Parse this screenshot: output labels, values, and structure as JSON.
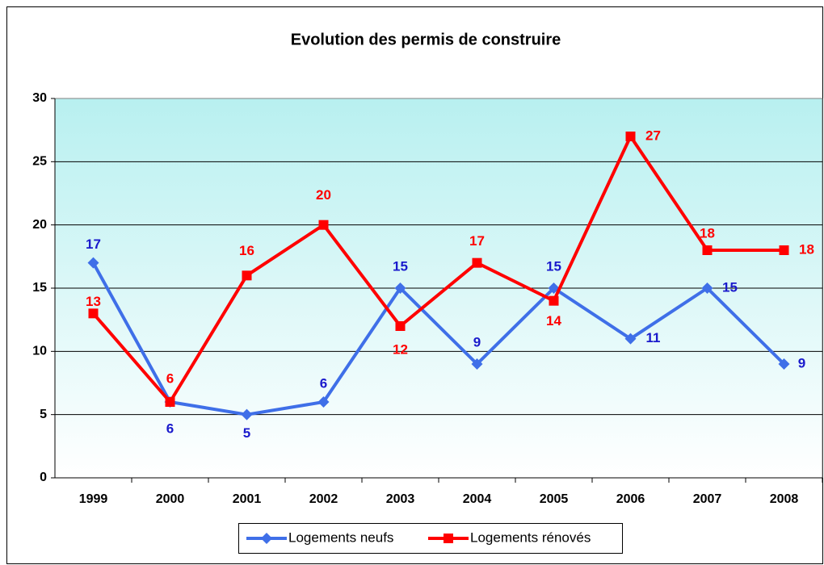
{
  "chart_data": {
    "type": "line",
    "title": "Evolution des permis de construire",
    "categories": [
      "1999",
      "2000",
      "2001",
      "2002",
      "2003",
      "2004",
      "2005",
      "2006",
      "2007",
      "2008"
    ],
    "series": [
      {
        "name": "Logements neufs",
        "color": "#3f6fe8",
        "label_color": "#1a1acc",
        "marker": "diamond",
        "values": [
          17,
          6,
          5,
          6,
          15,
          9,
          15,
          11,
          15,
          9
        ]
      },
      {
        "name": "Logements rénovés",
        "color": "#ff0000",
        "label_color": "#ff0000",
        "marker": "square",
        "values": [
          13,
          6,
          16,
          20,
          12,
          17,
          14,
          27,
          18,
          18
        ]
      }
    ],
    "ylim": [
      0,
      30
    ],
    "yticks": [
      0,
      5,
      10,
      15,
      20,
      25,
      30
    ],
    "grid": true,
    "legend": "bottom"
  }
}
